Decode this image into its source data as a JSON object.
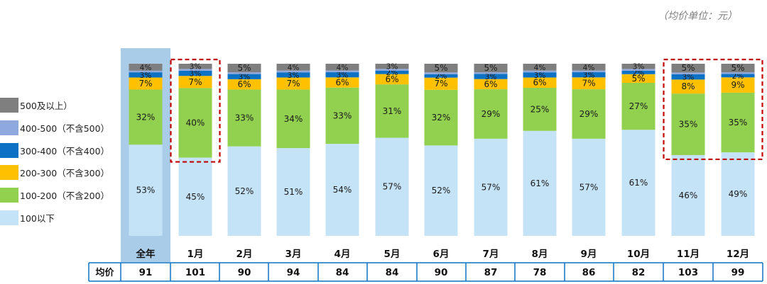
{
  "unit_note": "（均价单位：元）",
  "price_row_label": "均价",
  "colors": {
    "500+": "#7f7f7f",
    "400-500": "#8fa8de",
    "300-400": "#0e72c4",
    "200-300": "#ffc000",
    "100-200": "#92d050",
    "under100": "#c5e3f7",
    "annual_highlight": "#a9cde9",
    "highlight_box": "#c00000",
    "table_border": "#0e72c4"
  },
  "chart_data": {
    "type": "bar",
    "stacked": true,
    "unit": "%",
    "categories": [
      "全年",
      "1月",
      "2月",
      "3月",
      "4月",
      "5月",
      "6月",
      "7月",
      "8月",
      "9月",
      "10月",
      "11月",
      "12月"
    ],
    "series": [
      {
        "key": "under100",
        "name": "100以下",
        "values": [
          53,
          45,
          52,
          51,
          54,
          57,
          52,
          57,
          61,
          57,
          61,
          46,
          49
        ]
      },
      {
        "key": "100-200",
        "name": "100-200（不含200）",
        "values": [
          32,
          40,
          33,
          34,
          33,
          31,
          32,
          29,
          25,
          29,
          27,
          35,
          35
        ]
      },
      {
        "key": "200-300",
        "name": "200-300（不含300）",
        "values": [
          7,
          7,
          6,
          7,
          6,
          6,
          7,
          6,
          6,
          7,
          5,
          8,
          9
        ]
      },
      {
        "key": "300-400",
        "name": "300-400（不含400）",
        "values": [
          3,
          3,
          3,
          3,
          3,
          2,
          2,
          3,
          3,
          3,
          2,
          3,
          2
        ]
      },
      {
        "key": "400-500",
        "name": "400-500（不含500）",
        "values": [
          1,
          1,
          1,
          1,
          1,
          1,
          1,
          1,
          1,
          1,
          1,
          1,
          1
        ]
      },
      {
        "key": "500+",
        "name": "500及以上）",
        "values": [
          4,
          3,
          5,
          4,
          4,
          3,
          5,
          5,
          4,
          4,
          3,
          5,
          5
        ]
      }
    ],
    "avg_price": [
      91,
      101,
      90,
      94,
      84,
      84,
      90,
      87,
      78,
      86,
      82,
      103,
      99
    ],
    "highlighted_categories": [
      "全年"
    ],
    "boxed_regions": [
      {
        "categories": [
          "1月"
        ],
        "series": [
          "100-200",
          "200-300",
          "300-400",
          "400-500",
          "500+"
        ]
      },
      {
        "categories": [
          "11月",
          "12月"
        ],
        "series": [
          "100-200",
          "200-300",
          "300-400",
          "400-500",
          "500+"
        ]
      }
    ],
    "legend_position": "left",
    "grid": false
  }
}
